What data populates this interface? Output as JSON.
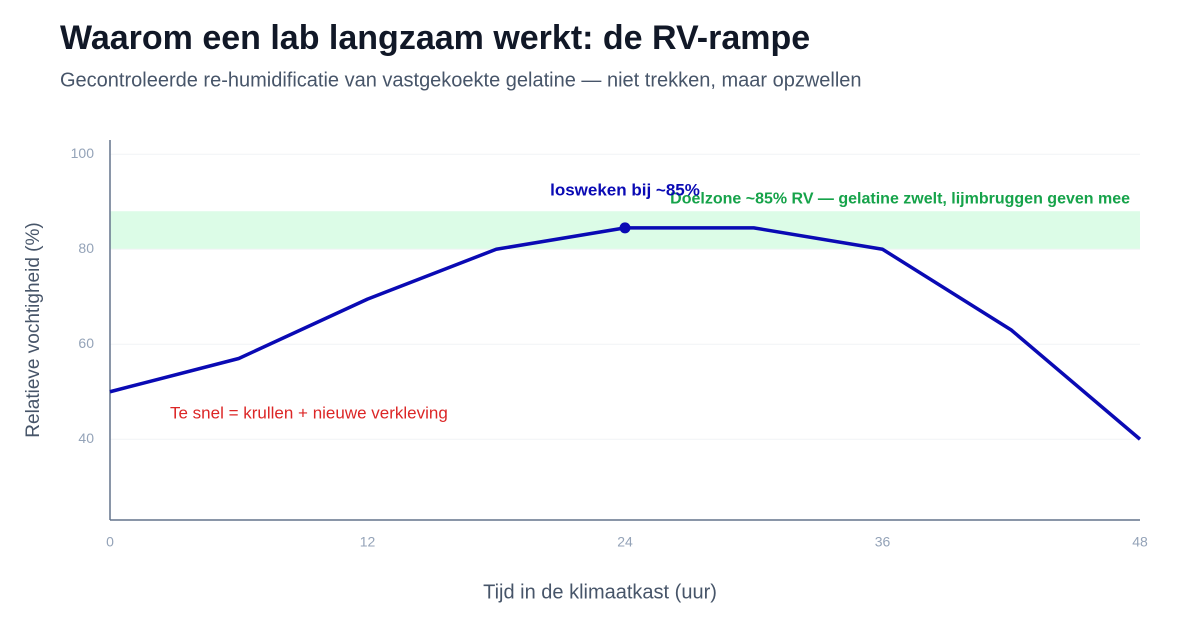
{
  "chart_data": {
    "type": "line",
    "title": "Waarom een lab langzaam werkt: de RV-rampe",
    "subtitle": "Gecontroleerde re-humidificatie van vastgekoekte gelatine — niet trekken, maar opzwellen",
    "x_label": "Tijd in de klimaatkast (uur)",
    "y_label": "Relatieve vochtigheid (%)",
    "x": [
      0,
      6,
      12,
      18,
      24,
      30,
      36,
      42,
      48
    ],
    "values": [
      50,
      57,
      69.5,
      80,
      84.5,
      84.5,
      80,
      63,
      40
    ],
    "color": "#0a0ab4",
    "xlim": [
      0,
      48
    ],
    "xticks": [
      0,
      12,
      24,
      36,
      48
    ],
    "ylim": [
      23,
      103
    ],
    "yticks": [
      40,
      60,
      80,
      100
    ],
    "grid": true,
    "band": {
      "ymin": 80,
      "ymax": 88,
      "color": "#dcfce7",
      "label": "Doelzone ~85% RV — gelatine zwelt, lijmbruggen geven mee",
      "label_color": "#16a34a"
    },
    "peak_label": "losweken bij ~85%",
    "warning": {
      "text": "Te snel = krullen + nieuwe verkleving",
      "color": "#dc2626"
    }
  }
}
